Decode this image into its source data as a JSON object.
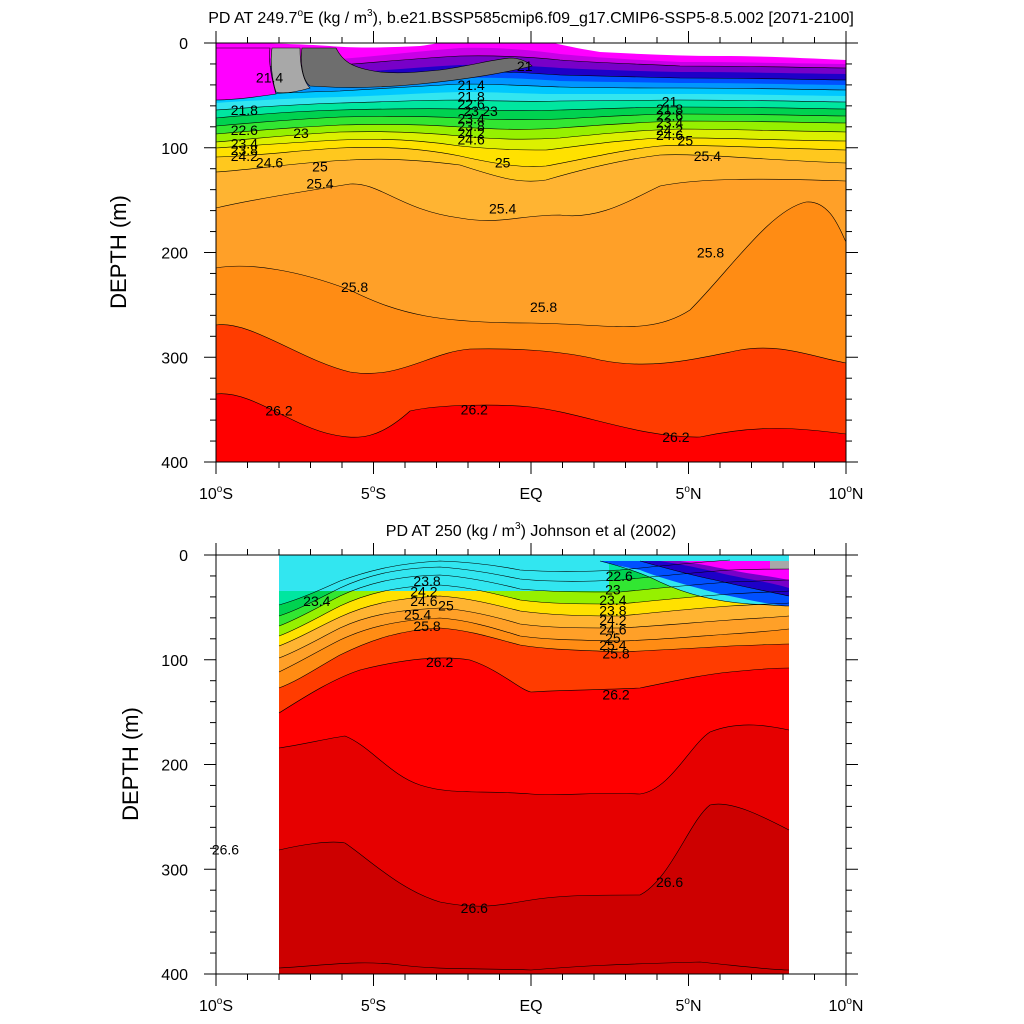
{
  "colors": {
    "palette": [
      "#6e6e6e",
      "#a8a8a8",
      "#ff00ff",
      "#c800e6",
      "#7800c8",
      "#1e00c8",
      "#0050ff",
      "#0096ff",
      "#00c8ff",
      "#32e6f0",
      "#00e6a0",
      "#00d250",
      "#32e632",
      "#96f000",
      "#dcf000",
      "#ffe100",
      "#ffc81e",
      "#ffb432",
      "#ffa028",
      "#ff8c14",
      "#ff6400",
      "#ff3c00",
      "#ff0000",
      "#e60000",
      "#cd0000"
    ]
  },
  "chart_data": [
    {
      "type": "contour",
      "title_prefix": "PD AT 249.7",
      "title_super1": "o",
      "title_mid": "E (kg / m",
      "title_super2": "3",
      "title_suffix": "), b.e21.BSSP585cmip6.f09_g17.CMIP6-SSP5-8.5.002 [2071-2100]",
      "ylabel": "DEPTH (m)",
      "ylim": [
        0,
        400
      ],
      "xlim": [
        -10,
        10
      ],
      "y_ticks": [
        {
          "value": 0,
          "label": "0"
        },
        {
          "value": 100,
          "label": "100"
        },
        {
          "value": 200,
          "label": "200"
        },
        {
          "value": 300,
          "label": "300"
        },
        {
          "value": 400,
          "label": "400"
        }
      ],
      "x_ticks": [
        {
          "value": -10,
          "label": "10",
          "deg": "o",
          "hemi": "S"
        },
        {
          "value": -5,
          "label": "5",
          "deg": "o",
          "hemi": "S"
        },
        {
          "value": 0,
          "label": "EQ",
          "deg": "",
          "hemi": ""
        },
        {
          "value": 5,
          "label": "5",
          "deg": "o",
          "hemi": "N"
        },
        {
          "value": 10,
          "label": "10",
          "deg": "o",
          "hemi": "N"
        }
      ],
      "data_xrange": [
        -10,
        10
      ],
      "contour_values": [
        21.0,
        21.4,
        21.8,
        22.2,
        22.6,
        23.0,
        23.4,
        23.8,
        24.2,
        24.6,
        25.0,
        25.4,
        25.8,
        26.2
      ],
      "contour_labels": [
        {
          "text": "21",
          "x": -0.2,
          "y": 22
        },
        {
          "text": "21.4",
          "x": -8.3,
          "y": 33
        },
        {
          "text": "21.4",
          "x": -1.9,
          "y": 40
        },
        {
          "text": "21.8",
          "x": -9.1,
          "y": 64
        },
        {
          "text": "22.6",
          "x": -9.1,
          "y": 83
        },
        {
          "text": "23",
          "x": -7.3,
          "y": 86
        },
        {
          "text": "23.4",
          "x": -9.1,
          "y": 96
        },
        {
          "text": "23.8",
          "x": -9.1,
          "y": 102
        },
        {
          "text": "24.2",
          "x": -9.1,
          "y": 108
        },
        {
          "text": "24.6",
          "x": -8.3,
          "y": 114
        },
        {
          "text": "25",
          "x": -6.7,
          "y": 118
        },
        {
          "text": "25.4",
          "x": -6.7,
          "y": 134
        },
        {
          "text": "21.8",
          "x": -1.9,
          "y": 51
        },
        {
          "text": "22.6",
          "x": -1.9,
          "y": 58
        },
        {
          "text": "23",
          "x": -1.9,
          "y": 65
        },
        {
          "text": "23.4",
          "x": -1.9,
          "y": 72
        },
        {
          "text": "23.8",
          "x": -1.9,
          "y": 79
        },
        {
          "text": "24.2",
          "x": -1.9,
          "y": 86
        },
        {
          "text": "24.6",
          "x": -1.9,
          "y": 92
        },
        {
          "text": "23",
          "x": -1.3,
          "y": 65
        },
        {
          "text": "25",
          "x": -0.9,
          "y": 114
        },
        {
          "text": "25.4",
          "x": -0.9,
          "y": 158
        },
        {
          "text": "21",
          "x": 4.4,
          "y": 56
        },
        {
          "text": "21.8",
          "x": 4.4,
          "y": 63
        },
        {
          "text": "22.6",
          "x": 4.4,
          "y": 69
        },
        {
          "text": "23.4",
          "x": 4.4,
          "y": 76
        },
        {
          "text": "24.2",
          "x": 4.4,
          "y": 83
        },
        {
          "text": "24.6",
          "x": 4.4,
          "y": 88
        },
        {
          "text": "25",
          "x": 4.9,
          "y": 93
        },
        {
          "text": "25.4",
          "x": 5.6,
          "y": 108
        },
        {
          "text": "25.8",
          "x": 5.7,
          "y": 200
        },
        {
          "text": "25.8",
          "x": -5.6,
          "y": 233
        },
        {
          "text": "25.8",
          "x": 0.4,
          "y": 252
        },
        {
          "text": "26.2",
          "x": -8.0,
          "y": 351
        },
        {
          "text": "26.2",
          "x": -1.8,
          "y": 350
        },
        {
          "text": "26.2",
          "x": 4.6,
          "y": 376
        }
      ]
    },
    {
      "type": "contour",
      "title_prefix": "PD AT 250 (kg / m",
      "title_super": "3",
      "title_suffix": ") Johnson et al (2002)",
      "ylabel": "DEPTH (m)",
      "ylim": [
        0,
        400
      ],
      "xlim": [
        -10,
        10
      ],
      "y_ticks": [
        {
          "value": 0,
          "label": "0"
        },
        {
          "value": 100,
          "label": "100"
        },
        {
          "value": 200,
          "label": "200"
        },
        {
          "value": 300,
          "label": "300"
        },
        {
          "value": 400,
          "label": "400"
        }
      ],
      "x_ticks": [
        {
          "value": -10,
          "label": "10",
          "deg": "o",
          "hemi": "S"
        },
        {
          "value": -5,
          "label": "5",
          "deg": "o",
          "hemi": "S"
        },
        {
          "value": 0,
          "label": "EQ",
          "deg": "",
          "hemi": ""
        },
        {
          "value": 5,
          "label": "5",
          "deg": "o",
          "hemi": "N"
        },
        {
          "value": 10,
          "label": "10",
          "deg": "o",
          "hemi": "N"
        }
      ],
      "data_xrange": [
        -8,
        8.2
      ],
      "contour_values": [
        22.2,
        22.6,
        23.0,
        23.4,
        23.8,
        24.2,
        24.6,
        25.0,
        25.4,
        25.8,
        26.2,
        26.6
      ],
      "contour_labels": [
        {
          "text": "23.4",
          "x": -6.8,
          "y": 44
        },
        {
          "text": "23.8",
          "x": -3.3,
          "y": 25
        },
        {
          "text": "24.2",
          "x": -3.4,
          "y": 35
        },
        {
          "text": "24.6",
          "x": -3.4,
          "y": 44
        },
        {
          "text": "25",
          "x": -2.7,
          "y": 48
        },
        {
          "text": "25.4",
          "x": -3.6,
          "y": 57
        },
        {
          "text": "25.8",
          "x": -3.3,
          "y": 68
        },
        {
          "text": "26.2",
          "x": -2.9,
          "y": 102
        },
        {
          "text": "22.6",
          "x": 2.8,
          "y": 20
        },
        {
          "text": "23",
          "x": 2.6,
          "y": 33
        },
        {
          "text": "23.4",
          "x": 2.6,
          "y": 43
        },
        {
          "text": "23.8",
          "x": 2.6,
          "y": 53
        },
        {
          "text": "24.2",
          "x": 2.6,
          "y": 62
        },
        {
          "text": "24.6",
          "x": 2.6,
          "y": 71
        },
        {
          "text": "25",
          "x": 2.6,
          "y": 79
        },
        {
          "text": "25.4",
          "x": 2.6,
          "y": 86
        },
        {
          "text": "25.8",
          "x": 2.7,
          "y": 94
        },
        {
          "text": "26.2",
          "x": 2.7,
          "y": 133
        },
        {
          "text": "26.6",
          "x": -9.7,
          "y": 281
        },
        {
          "text": "26.6",
          "x": -1.8,
          "y": 337
        },
        {
          "text": "26.6",
          "x": 4.4,
          "y": 312
        }
      ]
    }
  ]
}
